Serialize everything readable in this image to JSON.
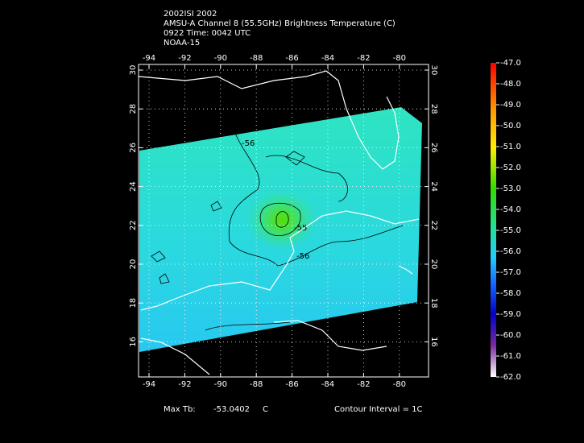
{
  "header": {
    "lines": [
      "2002ISI 2002",
      "AMSU-A Channel 8 (55.5GHz) Brightness Temperature (C)",
      "0922 Time: 0042 UTC",
      "NOAA-15"
    ]
  },
  "map": {
    "lon_ticks": [
      -94,
      -92,
      -90,
      -88,
      -86,
      -84,
      -82,
      -80
    ],
    "lat_ticks": [
      30,
      28,
      26,
      24,
      22,
      20,
      18,
      16
    ],
    "contour_labels": [
      "-56",
      "-55",
      "-56"
    ]
  },
  "colorbar": {
    "ticks": [
      {
        "value": -47,
        "label": "-47.0"
      },
      {
        "value": -48,
        "label": "-48.0"
      },
      {
        "value": -49,
        "label": "-49.0"
      },
      {
        "value": -50,
        "label": "-50.0"
      },
      {
        "value": -51,
        "label": "-51.0"
      },
      {
        "value": -52,
        "label": "-52.0"
      },
      {
        "value": -53,
        "label": "-53.0"
      },
      {
        "value": -54,
        "label": "-54.0"
      },
      {
        "value": -55,
        "label": "-55.0"
      },
      {
        "value": -56,
        "label": "-56.0"
      },
      {
        "value": -57,
        "label": "-57.0"
      },
      {
        "value": -58,
        "label": "-58.0"
      },
      {
        "value": -59,
        "label": "-59.0"
      },
      {
        "value": -60,
        "label": "-60.0"
      },
      {
        "value": -61,
        "label": "-61.0"
      },
      {
        "value": -62,
        "label": "-62.0"
      }
    ]
  },
  "footer": {
    "max_tb_label": "Max Tb:",
    "max_tb_value": "-53.0402",
    "max_tb_unit": "C",
    "contour_interval": "Contour Interval = 1C"
  }
}
